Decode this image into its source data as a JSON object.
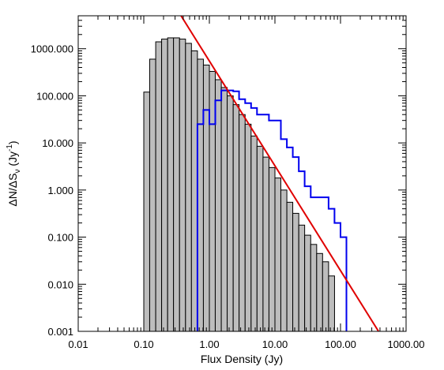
{
  "chart_data": {
    "type": "bar",
    "xlabel": "Flux Density (Jy)",
    "ylabel": "ΔN/ΔS",
    "ylabel_sub": "ν",
    "ylabel_units": " (Jy",
    "ylabel_sup": "-1",
    "ylabel_close": ")",
    "xscale": "log",
    "yscale": "log",
    "xlim": [
      0.01,
      1000
    ],
    "ylim": [
      0.001,
      5000
    ],
    "x_tick_labels": [
      "0.01",
      "0.10",
      "1.00",
      "10.00",
      "100.00",
      "1000.00"
    ],
    "x_tick_values": [
      0.01,
      0.1,
      1,
      10,
      100,
      1000
    ],
    "y_tick_labels": [
      "0.001",
      "0.010",
      "0.100",
      "1.000",
      "10.000",
      "100.000",
      "1000.000"
    ],
    "y_tick_values": [
      0.001,
      0.01,
      0.1,
      1,
      10,
      100,
      1000
    ],
    "grid": false,
    "series": [
      {
        "kind": "histogram",
        "color": "#bdbdbd",
        "edge_color": "#000000",
        "bin_edges": [
          0.1,
          0.123,
          0.152,
          0.187,
          0.231,
          0.284,
          0.351,
          0.433,
          0.533,
          0.658,
          0.811,
          1.0,
          1.23,
          1.52,
          1.87,
          2.31,
          2.84,
          3.51,
          4.33,
          5.33,
          6.58,
          8.11,
          10.0,
          12.3,
          15.2,
          18.7,
          23.1,
          28.4,
          35.1,
          43.3,
          53.3,
          65.8,
          81.1
        ],
        "values": [
          120,
          600,
          1400,
          1600,
          1700,
          1700,
          1600,
          1300,
          900,
          600,
          450,
          330,
          220,
          150,
          100,
          65,
          40,
          25,
          14,
          8.5,
          5,
          3,
          1.8,
          1.0,
          0.55,
          0.32,
          0.18,
          0.11,
          0.07,
          0.045,
          0.03,
          0.015
        ]
      },
      {
        "kind": "step",
        "color": "#0000ee",
        "x": [
          0.658,
          0.658,
          0.811,
          0.811,
          1.0,
          1.0,
          1.23,
          1.23,
          1.52,
          1.52,
          2.31,
          2.31,
          2.84,
          2.84,
          3.51,
          3.51,
          4.33,
          4.33,
          5.33,
          5.33,
          8.11,
          8.11,
          12.3,
          12.3,
          15.2,
          15.2,
          18.7,
          18.7,
          23.1,
          23.1,
          28.4,
          28.4,
          35.1,
          35.1,
          65.8,
          65.8,
          81.1,
          81.1,
          100.0,
          100.0,
          123.0,
          123.0
        ],
        "y": [
          0.001,
          25,
          25,
          50,
          50,
          25,
          25,
          80,
          80,
          130,
          130,
          125,
          125,
          85,
          85,
          70,
          70,
          55,
          55,
          40,
          40,
          30,
          30,
          12,
          12,
          8,
          8,
          5,
          5,
          2.5,
          2.5,
          1.2,
          1.2,
          0.7,
          0.7,
          0.4,
          0.4,
          0.2,
          0.2,
          0.1,
          0.1,
          0.001
        ]
      },
      {
        "kind": "line",
        "color": "#e00000",
        "x": [
          0.37,
          380
        ],
        "y": [
          5000,
          0.001
        ]
      }
    ]
  }
}
